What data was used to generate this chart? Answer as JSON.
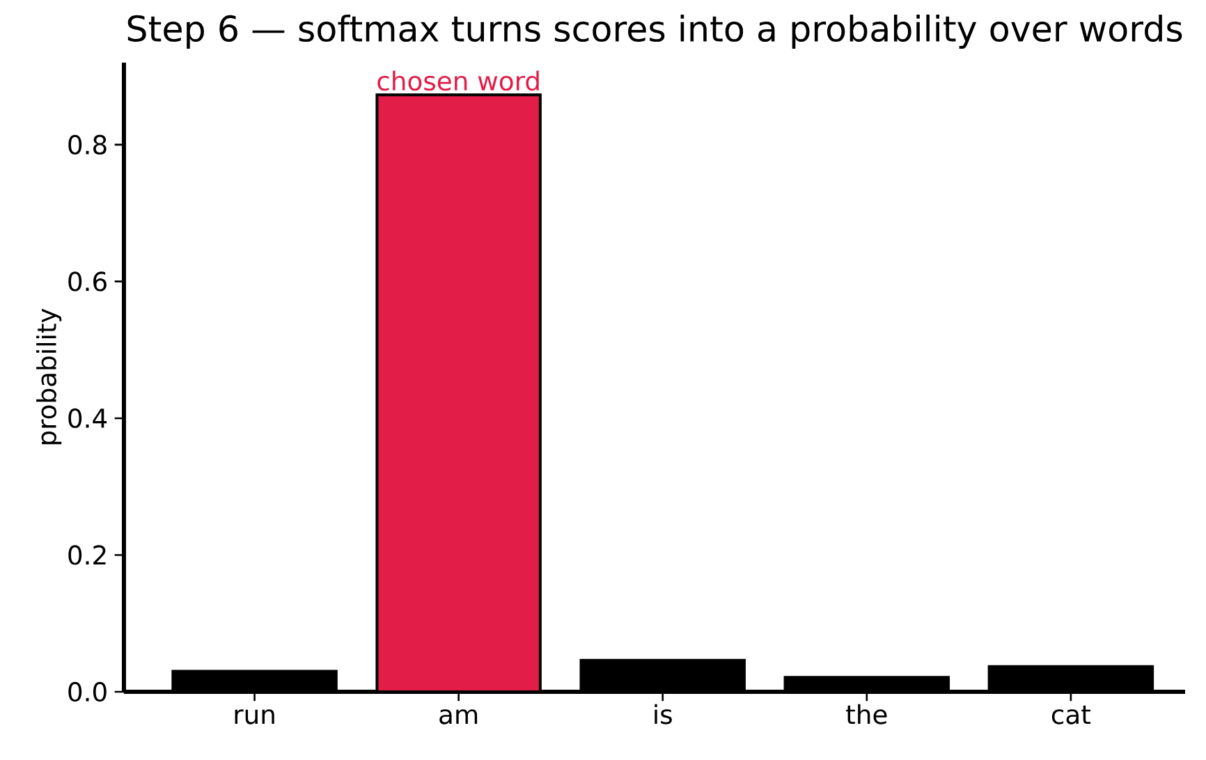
{
  "chart_data": {
    "type": "bar",
    "title": "Step 6 — softmax turns scores into a probability over words",
    "ylabel": "probability",
    "categories": [
      "run",
      "am",
      "is",
      "the",
      "cat"
    ],
    "values": [
      0.03,
      0.873,
      0.046,
      0.021,
      0.037
    ],
    "colors": [
      "#000000",
      "#e11d48",
      "#000000",
      "#000000",
      "#000000"
    ],
    "ylim": [
      0,
      0.92
    ],
    "yticks": [
      {
        "value": 0,
        "label": "0.0"
      },
      0.2,
      0.4,
      0.6,
      0.8
    ],
    "annotations": [
      {
        "text": "chosen word",
        "x": "am",
        "y": 0.873
      }
    ],
    "grid": false
  }
}
